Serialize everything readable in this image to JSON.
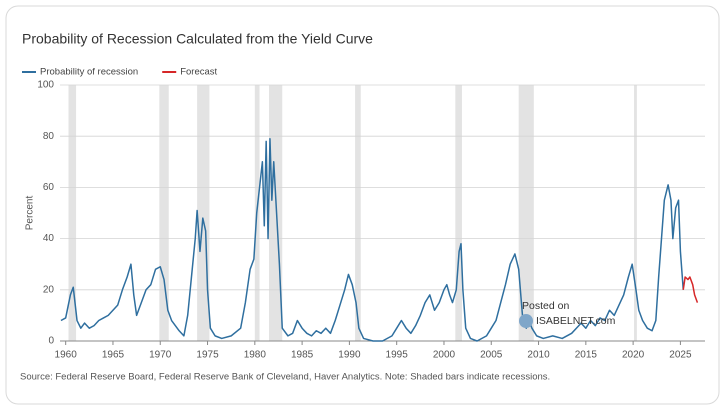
{
  "chart_data": {
    "type": "line",
    "title": "Probability of Recession Calculated from the Yield Curve",
    "y_label": "Percent",
    "source": "Source: Federal Reserve Board, Federal Reserve Bank of Cleveland, Haver Analytics. Note: Shaded bars indicate recessions.",
    "annotations": [
      "Posted on",
      "ISABELNET.com"
    ],
    "xlim": [
      1959.4,
      2027.6
    ],
    "xticks": [
      1960,
      1965,
      1970,
      1975,
      1980,
      1985,
      1990,
      1995,
      2000,
      2005,
      2010,
      2015,
      2020,
      2025
    ],
    "ylim": [
      0,
      100
    ],
    "yticks": [
      0,
      20,
      40,
      60,
      80,
      100
    ],
    "grid": true,
    "legend": "top-left",
    "recession_color": "#e3e3e3",
    "recessions": [
      [
        1960.3,
        1961.1
      ],
      [
        1969.9,
        1970.9
      ],
      [
        1973.9,
        1975.2
      ],
      [
        1980.0,
        1980.5
      ],
      [
        1981.5,
        1982.9
      ],
      [
        1990.6,
        1991.2
      ],
      [
        2001.2,
        2001.9
      ],
      [
        2007.9,
        2009.5
      ],
      [
        2020.1,
        2020.4
      ]
    ],
    "series": [
      {
        "name": "Probability of recession",
        "color": "#2f6f9f",
        "x": [
          1959.5,
          1960.0,
          1960.5,
          1960.8,
          1961.2,
          1961.6,
          1962,
          1962.5,
          1963,
          1963.5,
          1964,
          1964.5,
          1965,
          1965.5,
          1966,
          1966.5,
          1966.9,
          1967.2,
          1967.5,
          1968,
          1968.5,
          1969,
          1969.5,
          1970,
          1970.4,
          1970.8,
          1971.2,
          1971.6,
          1972,
          1972.5,
          1972.9,
          1973.3,
          1973.7,
          1973.9,
          1974.2,
          1974.5,
          1974.8,
          1975,
          1975.3,
          1975.8,
          1976.5,
          1977.5,
          1978.5,
          1979,
          1979.5,
          1979.9,
          1980.2,
          1980.5,
          1980.8,
          1981.0,
          1981.2,
          1981.4,
          1981.6,
          1981.8,
          1982.0,
          1982.3,
          1982.6,
          1982.9,
          1983.5,
          1984,
          1984.5,
          1985,
          1985.5,
          1986,
          1986.5,
          1987,
          1987.5,
          1988,
          1988.5,
          1989,
          1989.5,
          1989.9,
          1990.3,
          1990.7,
          1991,
          1991.5,
          1992.5,
          1993.5,
          1994.5,
          1995,
          1995.5,
          1996,
          1996.5,
          1997,
          1997.5,
          1998,
          1998.5,
          1999,
          1999.5,
          2000,
          2000.3,
          2000.6,
          2000.9,
          2001.3,
          2001.6,
          2001.8,
          2002,
          2002.3,
          2002.8,
          2003.5,
          2004.5,
          2005,
          2005.5,
          2006,
          2006.5,
          2007,
          2007.5,
          2007.9,
          2008.3,
          2008.7,
          2009,
          2009.3,
          2009.8,
          2010.5,
          2011.5,
          2012.5,
          2013.5,
          2014,
          2014.5,
          2015,
          2015.5,
          2016,
          2016.5,
          2017,
          2017.5,
          2018,
          2018.5,
          2019,
          2019.5,
          2019.9,
          2020.3,
          2020.6,
          2021,
          2021.5,
          2022,
          2022.4,
          2022.7,
          2023,
          2023.3,
          2023.7,
          2024,
          2024.2,
          2024.5,
          2024.8,
          2025.0,
          2025.3
        ],
        "values": [
          8,
          9,
          18,
          21,
          8,
          5,
          7,
          5,
          6,
          8,
          9,
          10,
          12,
          14,
          20,
          25,
          30,
          18,
          10,
          15,
          20,
          22,
          28,
          29,
          24,
          12,
          8,
          6,
          4,
          2,
          10,
          25,
          40,
          51,
          35,
          48,
          43,
          20,
          5,
          2,
          1,
          2,
          5,
          15,
          28,
          32,
          50,
          60,
          70,
          45,
          78,
          40,
          79,
          55,
          70,
          50,
          30,
          5,
          2,
          3,
          8,
          5,
          3,
          2,
          4,
          3,
          5,
          3,
          8,
          14,
          20,
          26,
          22,
          15,
          5,
          1,
          0,
          0,
          2,
          5,
          8,
          5,
          3,
          6,
          10,
          15,
          18,
          12,
          15,
          20,
          22,
          18,
          15,
          20,
          35,
          38,
          20,
          5,
          1,
          0,
          2,
          5,
          8,
          15,
          22,
          30,
          34,
          28,
          10,
          5,
          8,
          5,
          2,
          1,
          2,
          1,
          3,
          5,
          7,
          5,
          8,
          6,
          9,
          8,
          12,
          10,
          14,
          18,
          25,
          30,
          20,
          12,
          8,
          5,
          4,
          8,
          25,
          40,
          55,
          61,
          55,
          40,
          52,
          55,
          35,
          20
        ]
      },
      {
        "name": "Forecast",
        "color": "#d62728",
        "x": [
          2025.3,
          2025.5,
          2025.8,
          2026.0,
          2026.3,
          2026.5,
          2026.8
        ],
        "values": [
          20,
          25,
          24,
          25,
          22,
          18,
          15
        ]
      }
    ]
  }
}
